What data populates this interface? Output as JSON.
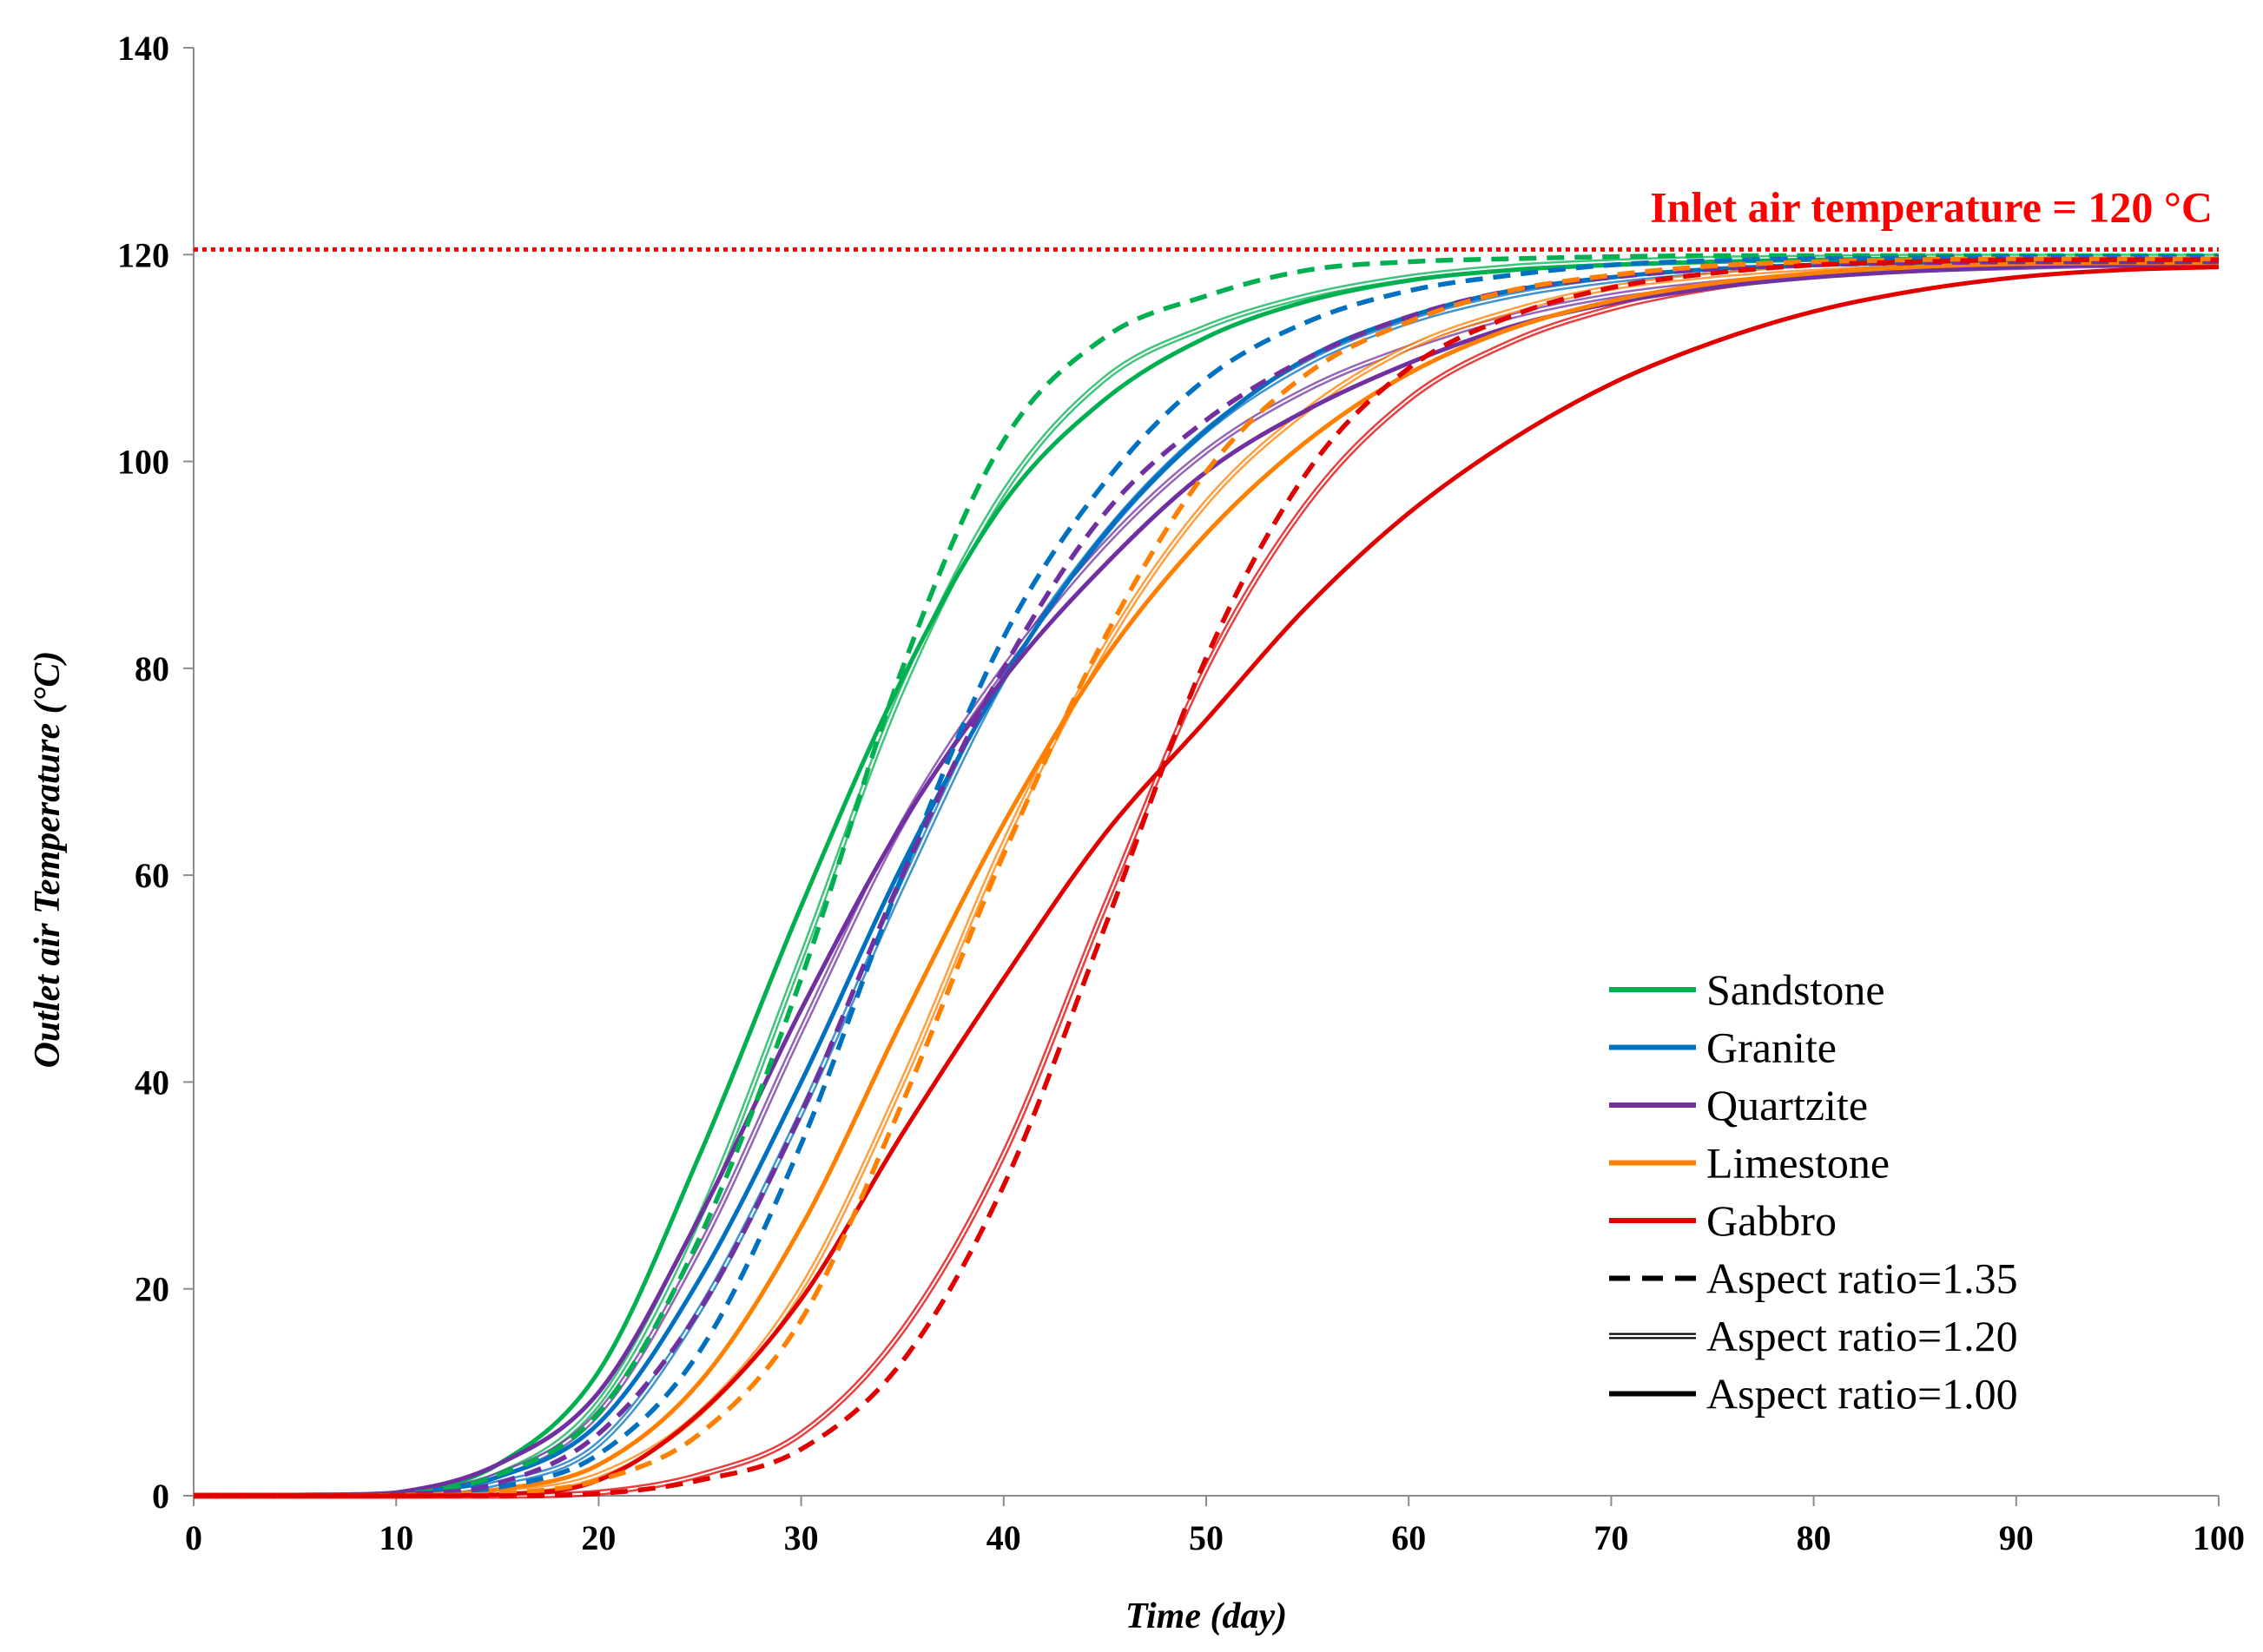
{
  "chart_data": {
    "type": "line",
    "title": "",
    "xlabel": "Time (day)",
    "ylabel": "Outlet air Temperature (°C)",
    "xlim": [
      0,
      100
    ],
    "ylim": [
      0,
      140
    ],
    "xticks": [
      0,
      10,
      20,
      30,
      40,
      50,
      60,
      70,
      80,
      90,
      100
    ],
    "yticks": [
      0,
      20,
      40,
      60,
      80,
      100,
      120,
      140
    ],
    "grid": false,
    "legend_position": "bottom-right",
    "annotation": {
      "text": "Inlet air temperature = 120 °C",
      "y": 120.5,
      "color": "#ff0000"
    },
    "legend": [
      {
        "label": "Sandstone",
        "color": "#00b050",
        "style": "solid"
      },
      {
        "label": "Granite",
        "color": "#0070c0",
        "style": "solid"
      },
      {
        "label": "Quartzite",
        "color": "#7030a0",
        "style": "solid"
      },
      {
        "label": "Limestone",
        "color": "#ff7f00",
        "style": "solid"
      },
      {
        "label": "Gabbro",
        "color": "#e00000",
        "style": "solid"
      },
      {
        "label": "Aspect ratio=1.35",
        "color": "#000000",
        "style": "dashed"
      },
      {
        "label": "Aspect ratio=1.20",
        "color": "#000000",
        "style": "double"
      },
      {
        "label": "Aspect ratio=1.00",
        "color": "#000000",
        "style": "solid"
      }
    ],
    "x": [
      0,
      5,
      10,
      15,
      20,
      25,
      30,
      35,
      40,
      45,
      50,
      55,
      60,
      65,
      70,
      75,
      80,
      85,
      90,
      95,
      100
    ],
    "series": [
      {
        "name": "Sandstone, Aspect ratio=1.35",
        "material": "Sandstone",
        "aspect_ratio": "1.35",
        "color": "#00b050",
        "style": "dashed",
        "values": [
          0,
          0,
          0.1,
          2,
          8,
          25,
          50,
          80,
          102,
          112,
          116,
          118.5,
          119.3,
          119.6,
          119.8,
          119.9,
          119.9,
          119.9,
          119.9,
          119.9,
          119.9
        ]
      },
      {
        "name": "Sandstone, Aspect ratio=1.20",
        "material": "Sandstone",
        "aspect_ratio": "1.20",
        "color": "#00b050",
        "style": "double",
        "values": [
          0,
          0,
          0.1,
          2,
          9,
          27,
          52,
          78,
          97,
          108,
          113,
          116,
          117.8,
          118.8,
          119.3,
          119.6,
          119.7,
          119.8,
          119.8,
          119.8,
          119.8
        ]
      },
      {
        "name": "Sandstone, Aspect ratio=1.00",
        "material": "Sandstone",
        "aspect_ratio": "1.00",
        "color": "#00b050",
        "style": "solid",
        "values": [
          0,
          0,
          0.2,
          3,
          12,
          33,
          57,
          79,
          96,
          106,
          112,
          115.5,
          117.5,
          118.5,
          119,
          119.3,
          119.5,
          119.6,
          119.6,
          119.6,
          119.6
        ]
      },
      {
        "name": "Granite, Aspect ratio=1.35",
        "material": "Granite",
        "aspect_ratio": "1.35",
        "color": "#0070c0",
        "style": "dashed",
        "values": [
          0,
          0,
          0.1,
          0.8,
          4,
          14,
          34,
          60,
          83,
          98,
          108,
          113.5,
          116.5,
          118,
          119,
          119.4,
          119.6,
          119.7,
          119.8,
          119.8,
          119.8
        ]
      },
      {
        "name": "Granite, Aspect ratio=1.20",
        "material": "Granite",
        "aspect_ratio": "1.20",
        "color": "#0070c0",
        "style": "double",
        "values": [
          0,
          0,
          0.1,
          1.2,
          5,
          18,
          37,
          59,
          79,
          93,
          103,
          109.5,
          113.5,
          116,
          117.5,
          118.4,
          118.9,
          119.2,
          119.3,
          119.4,
          119.4
        ]
      },
      {
        "name": "Granite, Aspect ratio=1.00",
        "material": "Granite",
        "aspect_ratio": "1.00",
        "color": "#0070c0",
        "style": "solid",
        "values": [
          0,
          0,
          0.2,
          1.8,
          7,
          21,
          40,
          61,
          79,
          93,
          103,
          110,
          114,
          116.5,
          117.8,
          118.6,
          119,
          119.2,
          119.3,
          119.4,
          119.4
        ]
      },
      {
        "name": "Quartzite, Aspect ratio=1.35",
        "material": "Quartzite",
        "aspect_ratio": "1.35",
        "color": "#7030a0",
        "style": "dashed",
        "values": [
          0,
          0,
          0.1,
          1.2,
          6,
          18,
          37,
          60,
          80,
          95,
          104,
          110,
          114,
          116.5,
          117.8,
          118.6,
          119,
          119.2,
          119.3,
          119.3,
          119.3
        ]
      },
      {
        "name": "Quartzite, Aspect ratio=1.20",
        "material": "Quartzite",
        "aspect_ratio": "1.20",
        "color": "#7030a0",
        "style": "double",
        "values": [
          0,
          0,
          0.2,
          2,
          8,
          24,
          45,
          65,
          80,
          92,
          101,
          107,
          111,
          114,
          116,
          117.2,
          118,
          118.5,
          118.8,
          119,
          119
        ]
      },
      {
        "name": "Quartzite, Aspect ratio=1.00",
        "material": "Quartzite",
        "aspect_ratio": "1.00",
        "color": "#7030a0",
        "style": "solid",
        "values": [
          0,
          0,
          0.3,
          3,
          10,
          27,
          47,
          65,
          79,
          90,
          99,
          105,
          109.5,
          113,
          115.3,
          116.8,
          117.8,
          118.4,
          118.8,
          119,
          119
        ]
      },
      {
        "name": "Limestone, Aspect ratio=1.35",
        "material": "Limestone",
        "aspect_ratio": "1.35",
        "color": "#ff7f00",
        "style": "dashed",
        "values": [
          0,
          0,
          0,
          0.2,
          1.5,
          6,
          17,
          38,
          62,
          83,
          99,
          108.5,
          113.5,
          116.5,
          118,
          118.9,
          119.3,
          119.5,
          119.6,
          119.6,
          119.6
        ]
      },
      {
        "name": "Limestone, Aspect ratio=1.20",
        "material": "Limestone",
        "aspect_ratio": "1.20",
        "color": "#ff7f00",
        "style": "double",
        "values": [
          0,
          0,
          0,
          0.3,
          2,
          8,
          20,
          40,
          63,
          82,
          96,
          105,
          111,
          114.5,
          116.8,
          118,
          118.7,
          119.1,
          119.3,
          119.4,
          119.4
        ]
      },
      {
        "name": "Limestone, Aspect ratio=1.00",
        "material": "Limestone",
        "aspect_ratio": "1.00",
        "color": "#ff7f00",
        "style": "solid",
        "values": [
          0,
          0,
          0.05,
          0.6,
          3,
          11,
          26,
          46,
          65,
          81,
          93,
          102,
          108.5,
          112.8,
          115.5,
          117.2,
          118.2,
          118.8,
          119.1,
          119.2,
          119.2
        ]
      },
      {
        "name": "Gabbro, Aspect ratio=1.35",
        "material": "Gabbro",
        "aspect_ratio": "1.35",
        "color": "#e00000",
        "style": "dashed",
        "values": [
          0,
          0,
          0,
          0,
          0.2,
          1.5,
          4.5,
          13,
          30,
          55,
          81,
          99,
          109,
          114,
          116.8,
          118.2,
          119,
          119.3,
          119.5,
          119.5,
          119.5
        ]
      },
      {
        "name": "Gabbro, Aspect ratio=1.20",
        "material": "Gabbro",
        "aspect_ratio": "1.20",
        "color": "#e00000",
        "style": "double",
        "values": [
          0,
          0,
          0,
          0,
          0.3,
          2,
          6,
          16,
          33,
          57,
          80,
          96,
          106,
          111.5,
          114.8,
          116.8,
          118,
          118.7,
          119,
          119.2,
          119.2
        ]
      },
      {
        "name": "Gabbro, Aspect ratio=1.00",
        "material": "Gabbro",
        "aspect_ratio": "1.00",
        "color": "#e00000",
        "style": "solid",
        "values": [
          0,
          0,
          0,
          0.1,
          1.5,
          8,
          19,
          35,
          50,
          64,
          75,
          86,
          95,
          102,
          107.5,
          111.5,
          114.5,
          116.5,
          117.8,
          118.5,
          118.8
        ]
      }
    ]
  }
}
